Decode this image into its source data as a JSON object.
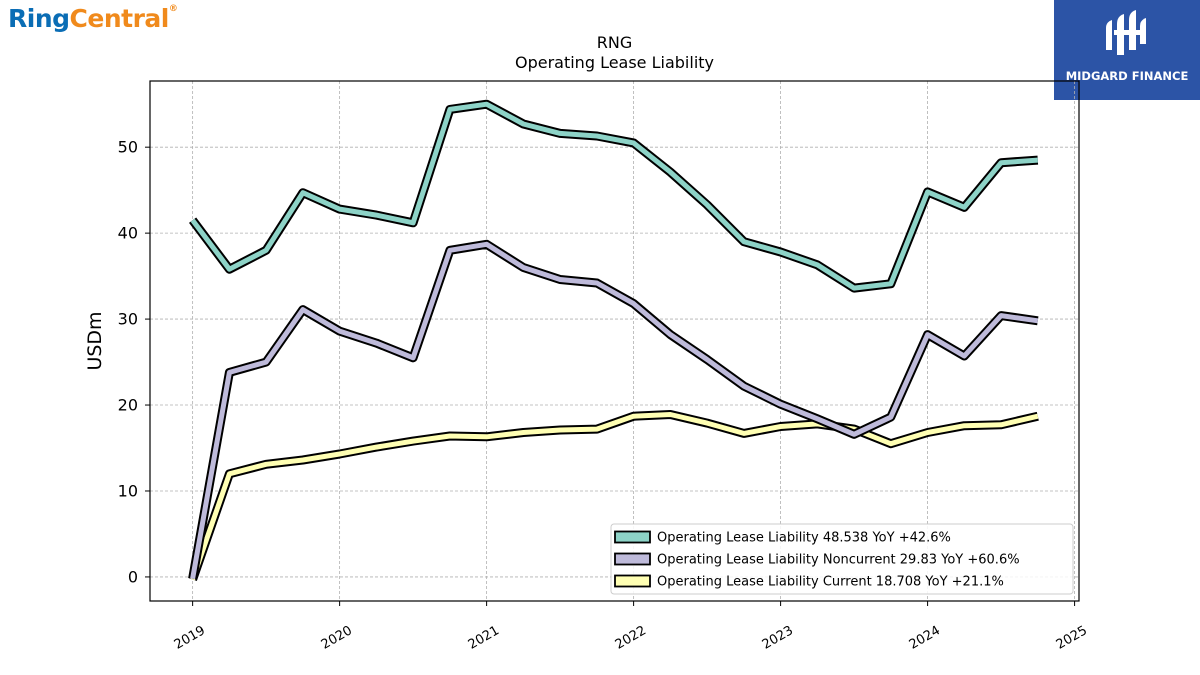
{
  "logos": {
    "left_part1": "Ring",
    "left_part2": "Central",
    "left_mark": "®",
    "right_text": "MIDGARD FINANCE"
  },
  "colors": {
    "series1": "#8dd3c7",
    "series2": "#bebada",
    "series3": "#ffffb3",
    "outline": "#000000",
    "grid": "#b0b0b0",
    "brand_left_blue": "#0a6db5",
    "brand_left_orange": "#f08a1c",
    "brand_right_bg": "#2c54a6"
  },
  "chart_data": {
    "type": "line",
    "title": "RNG",
    "subtitle": "Operating Lease Liability",
    "xlabel": "",
    "ylabel": "USDm",
    "ylim": [
      -2.8,
      57.7
    ],
    "xlim": [
      2018.71,
      2025.03
    ],
    "yticks": [
      0,
      10,
      20,
      30,
      40,
      50
    ],
    "xticks": [
      2019,
      2020,
      2021,
      2022,
      2023,
      2024,
      2025
    ],
    "grid": true,
    "legend_position": "lower-right",
    "x": [
      2019.0,
      2019.25,
      2019.5,
      2019.75,
      2020.0,
      2020.25,
      2020.5,
      2020.75,
      2021.0,
      2021.25,
      2021.5,
      2021.75,
      2022.0,
      2022.25,
      2022.5,
      2022.75,
      2023.0,
      2023.25,
      2023.5,
      2023.75,
      2024.0,
      2024.25,
      2024.5,
      2024.75
    ],
    "series": [
      {
        "name": "Operating Lease Liability",
        "legend_label": "Operating Lease Liability  48.538 YoY +42.6%",
        "values": [
          41.5,
          35.8,
          38.0,
          44.7,
          42.8,
          42.1,
          41.2,
          54.4,
          55.0,
          52.7,
          51.6,
          51.3,
          50.5,
          47.1,
          43.3,
          39.0,
          37.8,
          36.3,
          33.6,
          34.1,
          44.8,
          43.0,
          48.2,
          48.5
        ]
      },
      {
        "name": "Operating Lease Liability Noncurrent",
        "legend_label": "Operating Lease Liability Noncurrent  29.83 YoY +60.6%",
        "values": [
          -0.2,
          23.8,
          25.0,
          31.1,
          28.6,
          27.2,
          25.5,
          38.0,
          38.7,
          36.0,
          34.6,
          34.2,
          31.8,
          28.2,
          25.3,
          22.2,
          20.1,
          18.4,
          16.6,
          18.6,
          28.2,
          25.7,
          30.4,
          29.8
        ]
      },
      {
        "name": "Operating Lease Liability Current",
        "legend_label": "Operating Lease Liability Current  18.708 YoY +21.1%",
        "values": [
          -0.3,
          12.0,
          13.1,
          13.6,
          14.3,
          15.1,
          15.8,
          16.4,
          16.3,
          16.8,
          17.1,
          17.2,
          18.7,
          18.9,
          17.9,
          16.7,
          17.5,
          17.8,
          17.2,
          15.5,
          16.8,
          17.6,
          17.7,
          18.7
        ]
      }
    ]
  }
}
